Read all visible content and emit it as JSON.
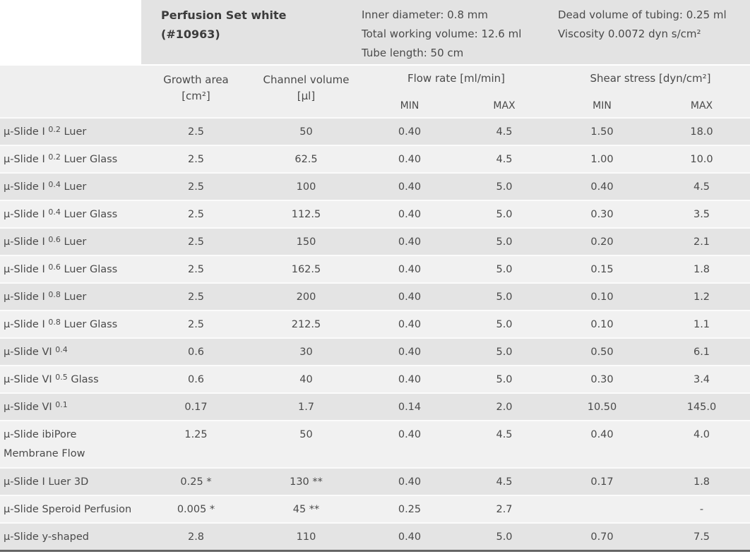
{
  "header": {
    "title": {
      "line1": "Perfusion Set white",
      "line2": "(#10963)"
    },
    "specs_left": {
      "inner_diameter": "Inner diameter: 0.8 mm",
      "total_working_volume": "Total working volume: 12.6 ml",
      "tube_length": "Tube length: 50 cm"
    },
    "specs_right": {
      "dead_volume": "Dead volume of tubing: 0.25 ml",
      "viscosity": "Viscosity 0.0072 dyn s/cm²"
    }
  },
  "table": {
    "columns": {
      "growth_area": {
        "line1": "Growth area",
        "line2": "[cm²]"
      },
      "channel_volume": {
        "line1": "Channel volume",
        "line2": "[µl]"
      },
      "flow_rate": {
        "label": "Flow rate [ml/min]",
        "min": "MIN",
        "max": "MAX"
      },
      "shear_stress": {
        "label": "Shear stress [dyn/cm²]",
        "min": "MIN",
        "max": "MAX"
      }
    },
    "rows": [
      {
        "name": {
          "main": "µ-Slide I",
          "sup": "0.2",
          "rest": "Luer",
          "line2": ""
        },
        "growth_area": "2.5",
        "channel_volume": "50",
        "flow_min": "0.40",
        "flow_max": "4.5",
        "shear_min": "1.50",
        "shear_max": "18.0"
      },
      {
        "name": {
          "main": "µ-Slide I",
          "sup": "0.2",
          "rest": "Luer Glass",
          "line2": ""
        },
        "growth_area": "2.5",
        "channel_volume": "62.5",
        "flow_min": "0.40",
        "flow_max": "4.5",
        "shear_min": "1.00",
        "shear_max": "10.0"
      },
      {
        "name": {
          "main": "µ-Slide I",
          "sup": "0.4",
          "rest": "Luer",
          "line2": ""
        },
        "growth_area": "2.5",
        "channel_volume": "100",
        "flow_min": "0.40",
        "flow_max": "5.0",
        "shear_min": "0.40",
        "shear_max": "4.5"
      },
      {
        "name": {
          "main": "µ-Slide I",
          "sup": "0.4",
          "rest": "Luer Glass",
          "line2": ""
        },
        "growth_area": "2.5",
        "channel_volume": "112.5",
        "flow_min": "0.40",
        "flow_max": "5.0",
        "shear_min": "0.30",
        "shear_max": "3.5"
      },
      {
        "name": {
          "main": "µ-Slide I",
          "sup": "0.6",
          "rest": "Luer",
          "line2": ""
        },
        "growth_area": "2.5",
        "channel_volume": "150",
        "flow_min": "0.40",
        "flow_max": "5.0",
        "shear_min": "0.20",
        "shear_max": "2.1"
      },
      {
        "name": {
          "main": "µ-Slide I",
          "sup": "0.6",
          "rest": "Luer Glass",
          "line2": ""
        },
        "growth_area": "2.5",
        "channel_volume": "162.5",
        "flow_min": "0.40",
        "flow_max": "5.0",
        "shear_min": "0.15",
        "shear_max": "1.8"
      },
      {
        "name": {
          "main": "µ-Slide I",
          "sup": "0.8",
          "rest": "Luer",
          "line2": ""
        },
        "growth_area": "2.5",
        "channel_volume": "200",
        "flow_min": "0.40",
        "flow_max": "5.0",
        "shear_min": "0.10",
        "shear_max": "1.2"
      },
      {
        "name": {
          "main": "µ-Slide I",
          "sup": "0.8",
          "rest": "Luer Glass",
          "line2": ""
        },
        "growth_area": "2.5",
        "channel_volume": "212.5",
        "flow_min": "0.40",
        "flow_max": "5.0",
        "shear_min": "0.10",
        "shear_max": "1.1"
      },
      {
        "name": {
          "main": "µ-Slide VI",
          "sup": "0.4",
          "rest": "",
          "line2": ""
        },
        "growth_area": "0.6",
        "channel_volume": "30",
        "flow_min": "0.40",
        "flow_max": "5.0",
        "shear_min": "0.50",
        "shear_max": "6.1"
      },
      {
        "name": {
          "main": "µ-Slide VI",
          "sup": "0.5",
          "rest": "Glass",
          "line2": ""
        },
        "growth_area": "0.6",
        "channel_volume": "40",
        "flow_min": "0.40",
        "flow_max": "5.0",
        "shear_min": "0.30",
        "shear_max": "3.4"
      },
      {
        "name": {
          "main": "µ-Slide VI",
          "sup": "0.1",
          "rest": "",
          "line2": ""
        },
        "growth_area": "0.17",
        "channel_volume": "1.7",
        "flow_min": "0.14",
        "flow_max": "2.0",
        "shear_min": "10.50",
        "shear_max": "145.0"
      },
      {
        "name": {
          "main": "µ-Slide ibiPore",
          "sup": "",
          "rest": "",
          "line2": "Membrane Flow"
        },
        "growth_area": "1.25",
        "channel_volume": "50",
        "flow_min": "0.40",
        "flow_max": "4.5",
        "shear_min": "0.40",
        "shear_max": "4.0"
      },
      {
        "name": {
          "main": "µ-Slide I Luer 3D",
          "sup": "",
          "rest": "",
          "line2": ""
        },
        "growth_area": "0.25 *",
        "channel_volume": "130 **",
        "flow_min": "0.40",
        "flow_max": "4.5",
        "shear_min": "0.17",
        "shear_max": "1.8"
      },
      {
        "name": {
          "main": "µ-Slide Speroid Perfusion",
          "sup": "",
          "rest": "",
          "line2": ""
        },
        "growth_area": "0.005 *",
        "channel_volume": "45 **",
        "flow_min": "0.25",
        "flow_max": "2.7",
        "shear_min": "",
        "shear_max": "-"
      },
      {
        "name": {
          "main": "µ-Slide y-shaped",
          "sup": "",
          "rest": "",
          "line2": ""
        },
        "growth_area": "2.8",
        "channel_volume": "110",
        "flow_min": "0.40",
        "flow_max": "5.0",
        "shear_min": "0.70",
        "shear_max": "7.5"
      }
    ]
  },
  "colors": {
    "header_block_bg": "#e3e3e3",
    "column_band_bg": "#efefef",
    "row_dark_bg": "#e4e4e4",
    "row_light_bg": "#f1f1f1",
    "row_separator": "#fbfbfb",
    "bottom_border": "#666666",
    "text": "#4a4a4a"
  }
}
